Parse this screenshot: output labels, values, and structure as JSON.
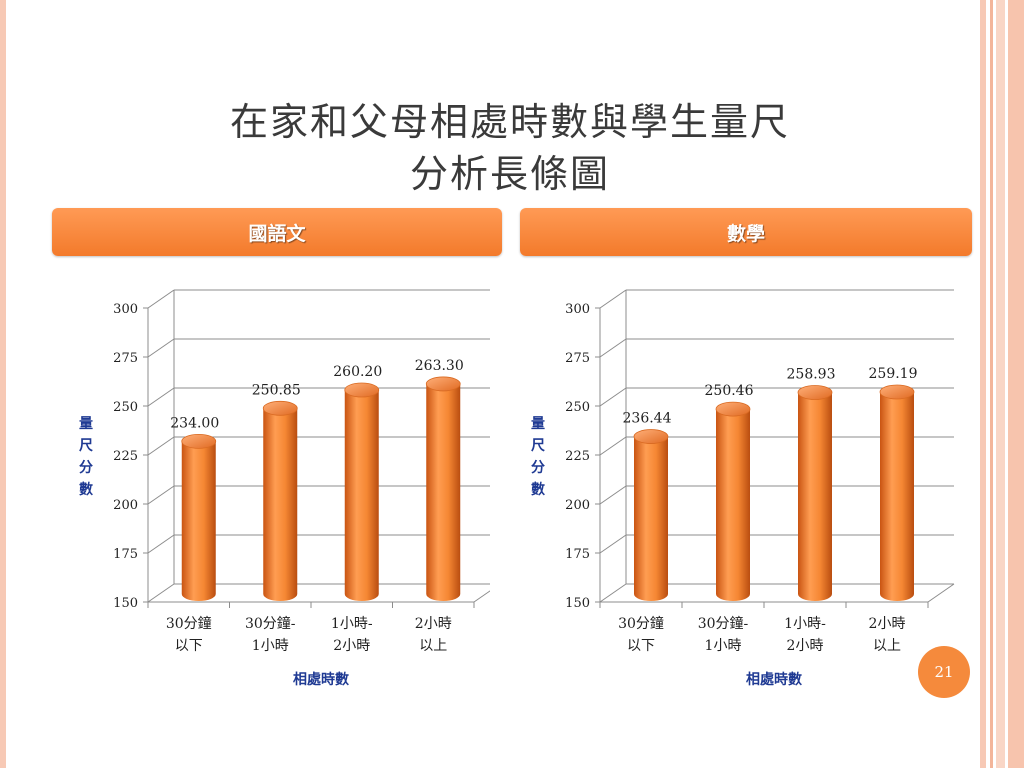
{
  "slide": {
    "title_line1": "在家和父母相處時數與學生量尺",
    "title_line2": "分析長條圖",
    "page_number": "21"
  },
  "colors": {
    "accent": "#f37a2b",
    "bar": "#f58733",
    "axis_label": "#1f3a93"
  },
  "chart_data": [
    {
      "type": "bar",
      "header": "國語文",
      "categories": [
        [
          "30分鐘",
          "以下"
        ],
        [
          "30分鐘-",
          "1小時"
        ],
        [
          "1小時-",
          "2小時"
        ],
        [
          "2小時",
          "以上"
        ]
      ],
      "values": [
        234.0,
        250.85,
        260.2,
        263.3
      ],
      "value_labels": [
        "234.00",
        "250.85",
        "260.20",
        "263.30"
      ],
      "ylabel": "量尺分數",
      "xlabel": "相處時數",
      "ylim": [
        150,
        300
      ],
      "yticks": [
        "150",
        "175",
        "200",
        "225",
        "250",
        "275",
        "300"
      ],
      "grid": true,
      "style": "3d-cylinder"
    },
    {
      "type": "bar",
      "header": "數學",
      "categories": [
        [
          "30分鐘",
          "以下"
        ],
        [
          "30分鐘-",
          "1小時"
        ],
        [
          "1小時-",
          "2小時"
        ],
        [
          "2小時",
          "以上"
        ]
      ],
      "values": [
        236.44,
        250.46,
        258.93,
        259.19
      ],
      "value_labels": [
        "236.44",
        "250.46",
        "258.93",
        "259.19"
      ],
      "ylabel": "量尺分數",
      "xlabel": "相處時數",
      "ylim": [
        150,
        300
      ],
      "yticks": [
        "150",
        "175",
        "200",
        "225",
        "250",
        "275",
        "300"
      ],
      "grid": true,
      "style": "3d-cylinder"
    }
  ]
}
